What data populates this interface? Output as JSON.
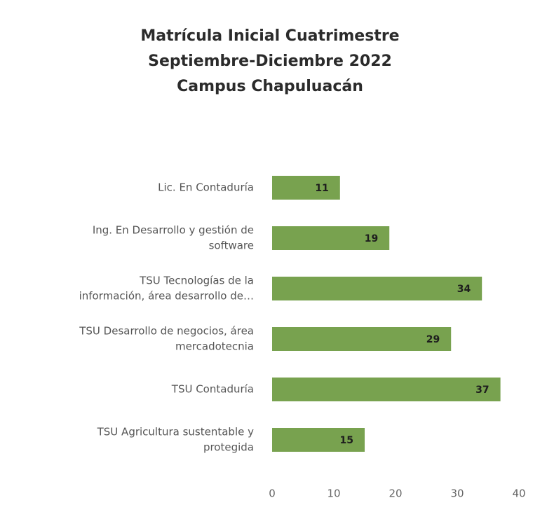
{
  "chart_data": {
    "type": "bar",
    "orientation": "horizontal",
    "title": [
      "Matrícula Inicial Cuatrimestre",
      "Septiembre-Diciembre 2022",
      "Campus Chapuluacán"
    ],
    "categories": [
      [
        "Lic. En Contaduría"
      ],
      [
        "Ing. En Desarrollo y gestión de",
        "software"
      ],
      [
        "TSU Tecnologías de la",
        "información, área desarrollo de…"
      ],
      [
        "TSU Desarrollo de negocios, área",
        "mercadotecnia"
      ],
      [
        "TSU Contaduría"
      ],
      [
        "TSU Agricultura sustentable y",
        "protegida"
      ]
    ],
    "values": [
      11,
      19,
      34,
      29,
      37,
      15
    ],
    "color": "#78a24f",
    "xlim": [
      0,
      40
    ],
    "xticks": [
      0,
      10,
      20,
      30,
      40
    ],
    "grid": false
  }
}
